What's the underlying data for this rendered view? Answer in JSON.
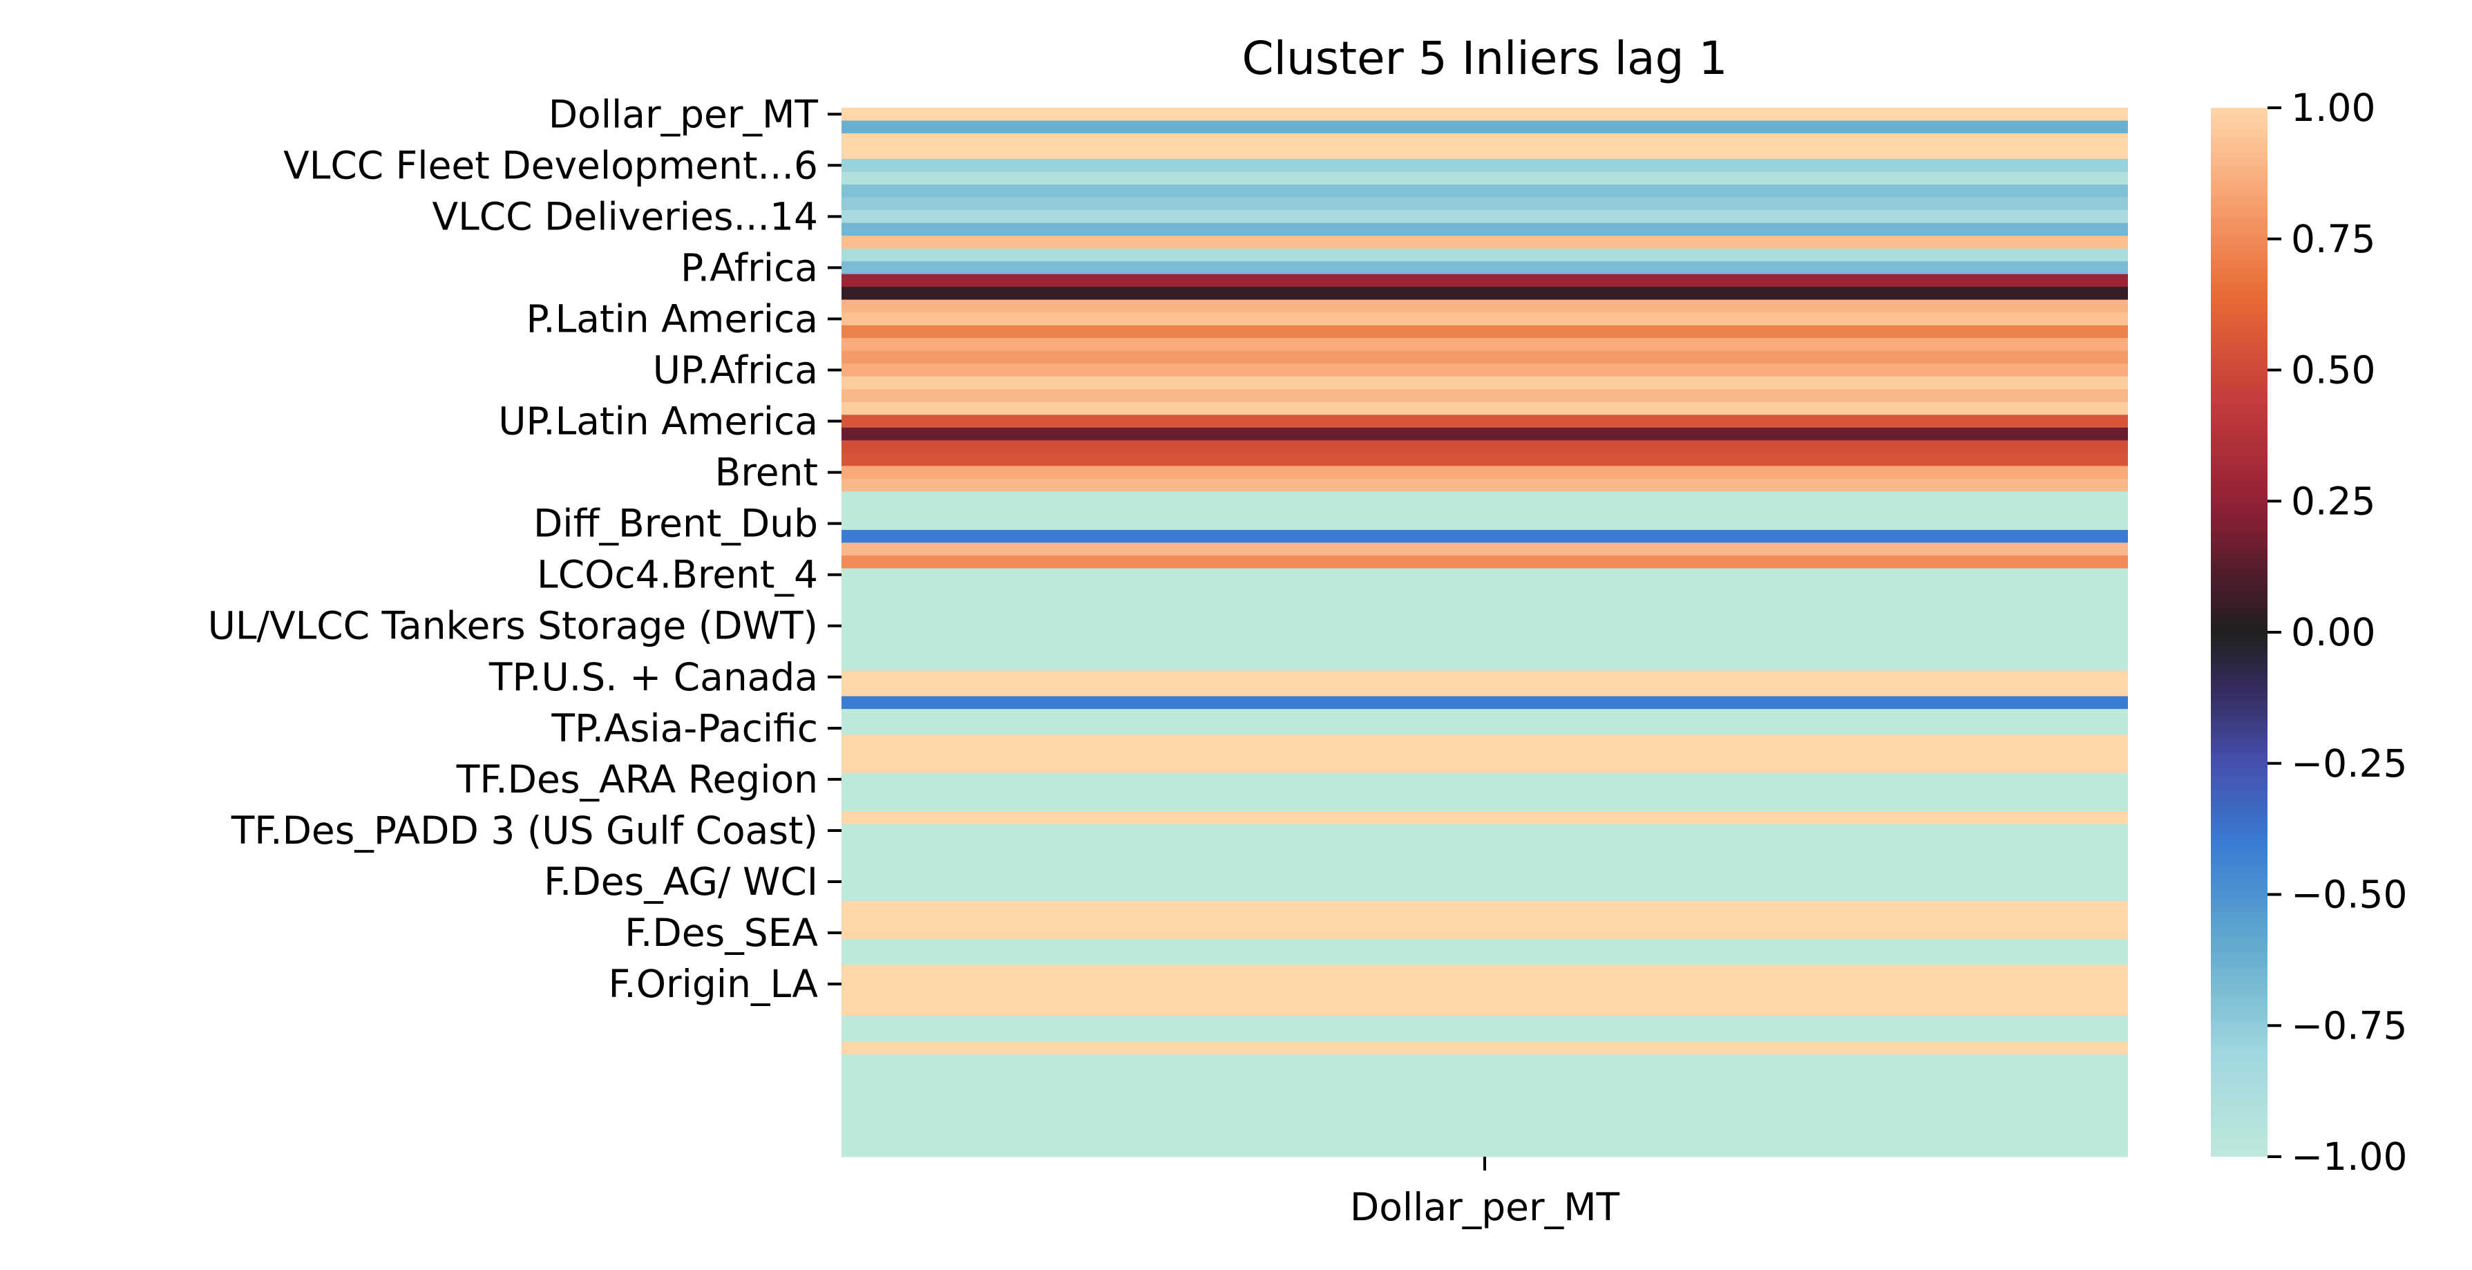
{
  "chart_data": {
    "type": "heatmap",
    "title": "Cluster 5 Inliers lag 1",
    "xlabel": "",
    "ylabel": "",
    "columns": [
      "Dollar_per_MT"
    ],
    "y_tick_labels": [
      "Dollar_per_MT",
      "VLCC Fleet Development...6",
      "VLCC Deliveries...14",
      "P.Africa",
      "P.Latin America",
      "UP.Africa",
      "UP.Latin America",
      "Brent",
      "Diff_Brent_Dub",
      "LCOc4.Brent_4",
      "UL/VLCC Tankers Storage (DWT)",
      "TP.U.S. + Canada",
      "TP.Asia-Pacific",
      "TF.Des_ARA Region",
      "TF.Des_PADD 3 (US Gulf Coast)",
      "F.Des_AG/ WCI",
      "F.Des_SEA",
      "F.Origin_LA"
    ],
    "y_tick_every": 4,
    "values": [
      1.0,
      -0.62,
      1.0,
      1.0,
      -0.78,
      -0.92,
      -0.7,
      -0.75,
      -0.85,
      -0.65,
      0.92,
      -0.86,
      -0.68,
      0.28,
      0.05,
      0.88,
      0.93,
      0.72,
      0.86,
      0.8,
      0.86,
      0.97,
      0.9,
      0.97,
      0.55,
      0.16,
      0.52,
      0.55,
      0.85,
      0.9,
      -1.0,
      -1.0,
      -1.0,
      -0.4,
      0.9,
      0.75,
      -1.0,
      -1.0,
      -1.0,
      -1.0,
      -1.0,
      -1.0,
      -1.0,
      -1.0,
      1.0,
      1.0,
      -0.4,
      -1.0,
      -1.0,
      1.0,
      1.0,
      1.0,
      -1.0,
      -1.0,
      -1.0,
      1.0,
      -1.0,
      -1.0,
      -1.0,
      -1.0,
      -1.0,
      -1.0,
      1.0,
      1.0,
      1.0,
      -1.0,
      -1.0,
      1.0,
      1.0,
      1.0,
      1.0,
      -1.0,
      -1.0,
      1.0,
      -1.0,
      -1.0,
      -1.0,
      -1.0,
      -1.0,
      -1.0,
      -1.0,
      -1.0
    ],
    "colorbar": {
      "min": -1.0,
      "max": 1.0,
      "ticks": [
        "1.00",
        "0.75",
        "0.50",
        "0.25",
        "0.00",
        "−0.25",
        "−0.50",
        "−0.75",
        "−1.00"
      ],
      "tick_values": [
        1.0,
        0.75,
        0.5,
        0.25,
        0.0,
        -0.25,
        -0.5,
        -0.75,
        -1.0
      ]
    },
    "colormap": "icefire",
    "grid": false,
    "legend": "colorbar-right"
  }
}
